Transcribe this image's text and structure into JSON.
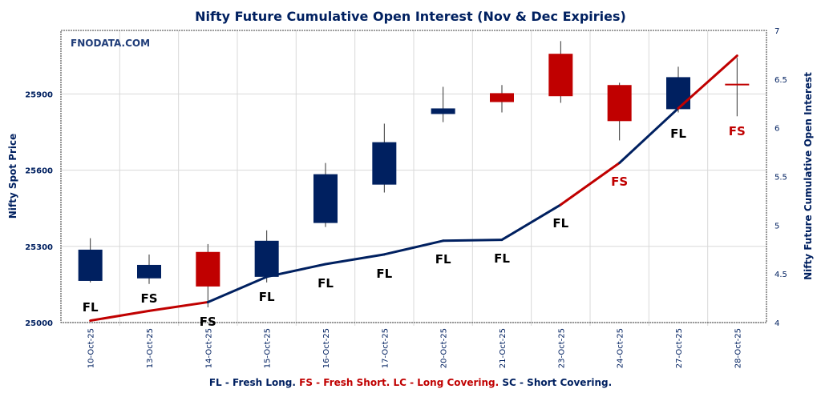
{
  "chart_data": {
    "type": "candlestick+line",
    "title": "Nifty Future Cumulative Open Interest (Nov & Dec Expiries)",
    "watermark": "FNODATA.COM",
    "ylabel_left": "Nifty Spot Price",
    "ylabel_right": "Nifty Future Cumulative Open Interest",
    "ylim_left": [
      25000,
      26150
    ],
    "yticks_left": [
      25000,
      25300,
      25600,
      25900
    ],
    "ylim_right": [
      4,
      7
    ],
    "yticks_right": [
      "4",
      "4.5",
      "5",
      "5.5",
      "6",
      "6.5",
      "7"
    ],
    "grid": true,
    "categories": [
      "10-Oct-25",
      "13-Oct-25",
      "14-Oct-25",
      "15-Oct-25",
      "16-Oct-25",
      "17-Oct-25",
      "20-Oct-25",
      "21-Oct-25",
      "23-Oct-25",
      "24-Oct-25",
      "27-Oct-25",
      "28-Oct-25"
    ],
    "candles": [
      {
        "open": 25164,
        "high": 25332,
        "low": 25158,
        "close": 25287
      },
      {
        "open": 25174,
        "high": 25268,
        "low": 25152,
        "close": 25227
      },
      {
        "open": 25278,
        "high": 25309,
        "low": 25060,
        "close": 25142
      },
      {
        "open": 25180,
        "high": 25363,
        "low": 25158,
        "close": 25322
      },
      {
        "open": 25392,
        "high": 25628,
        "low": 25376,
        "close": 25584
      },
      {
        "open": 25543,
        "high": 25783,
        "low": 25512,
        "close": 25710
      },
      {
        "open": 25821,
        "high": 25928,
        "low": 25789,
        "close": 25843
      },
      {
        "open": 25903,
        "high": 25935,
        "low": 25827,
        "close": 25868
      },
      {
        "open": 26058,
        "high": 26108,
        "low": 25865,
        "close": 25891
      },
      {
        "open": 25935,
        "high": 25944,
        "low": 25717,
        "close": 25793
      },
      {
        "open": 25840,
        "high": 26007,
        "low": 25827,
        "close": 25966
      },
      {
        "open": 25940,
        "high": 26042,
        "low": 25812,
        "close": 25936
      }
    ],
    "open_interest": [
      4.02,
      4.12,
      4.21,
      4.47,
      4.6,
      4.7,
      4.84,
      4.85,
      5.21,
      5.64,
      6.2,
      6.74
    ],
    "labels": [
      "FL",
      "FS",
      "FS",
      "FL",
      "FL",
      "FL",
      "FL",
      "FL",
      "FL",
      "FS",
      "FL",
      "FS"
    ],
    "label_colors": [
      "#000000",
      "#000000",
      "#000000",
      "#000000",
      "#000000",
      "#000000",
      "#000000",
      "#000000",
      "#000000",
      "#C00000",
      "#000000",
      "#C00000"
    ],
    "legend_parts": [
      {
        "text": "FL - Fresh Long. ",
        "color": "#002060"
      },
      {
        "text": "FS - Fresh Short. ",
        "color": "#C00000"
      },
      {
        "text": "LC - Long Covering. ",
        "color": "#C00000"
      },
      {
        "text": "SC - Short Covering.",
        "color": "#002060"
      }
    ],
    "colors": {
      "up": "#002060",
      "down": "#C00000",
      "grid": "#d9d9d9"
    }
  }
}
